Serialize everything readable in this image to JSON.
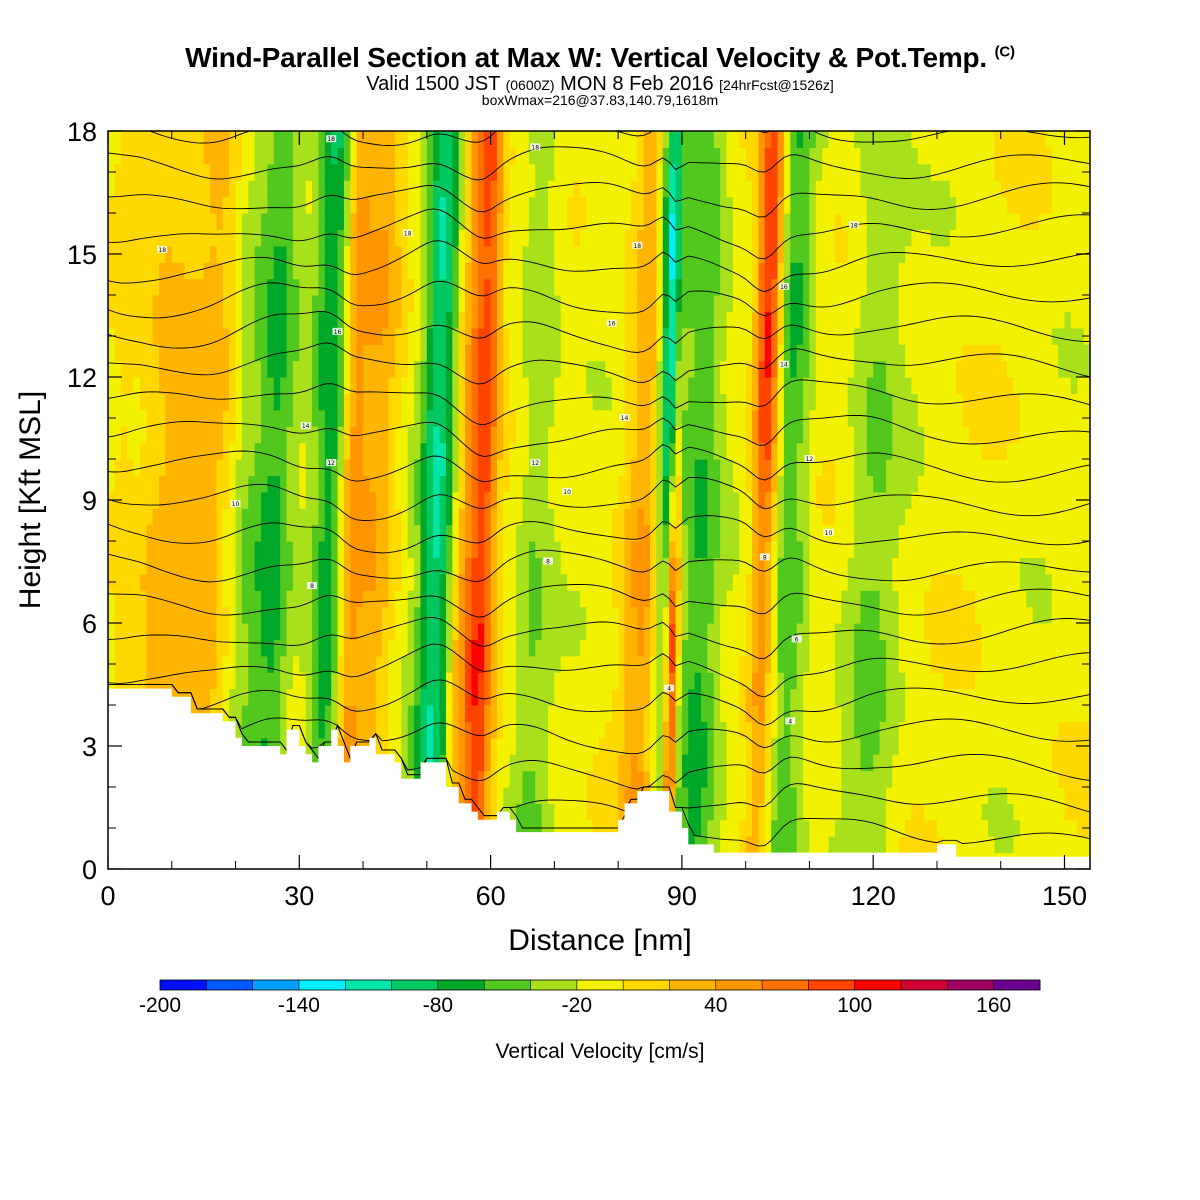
{
  "header": {
    "title": "Wind-Parallel Section at Max W: Vertical Velocity & Pot.Temp.",
    "title_mark": "(C)",
    "subtitle_main_a": "Valid 1500 JST",
    "subtitle_small_a": "(0600Z)",
    "subtitle_main_b": "MON 8 Feb 2016",
    "subtitle_small_b": "[24hrFcst@1526z]",
    "subtitle2": "boxWmax=216@37.83,140.79,1618m"
  },
  "chart_data": {
    "type": "heatmap",
    "xlabel": "Distance [nm]",
    "ylabel": "Height [Kft MSL]",
    "xlim": [
      0,
      154
    ],
    "ylim": [
      0,
      18
    ],
    "x_ticks": [
      0,
      30,
      60,
      90,
      120,
      150
    ],
    "y_ticks": [
      0,
      3,
      6,
      9,
      12,
      15,
      18
    ],
    "colorbar": {
      "label": "Vertical Velocity [cm/s]",
      "range": [
        -200,
        180
      ],
      "tick_values": [
        -200,
        -140,
        -80,
        -20,
        40,
        100,
        160
      ],
      "tick_labels": [
        "-200",
        "-140",
        "-80",
        "-20",
        "40",
        "100",
        "160"
      ],
      "colors": [
        "#0010ff",
        "#0058ff",
        "#00a0ff",
        "#00f0ff",
        "#00e6a8",
        "#00c860",
        "#00a82a",
        "#52c81e",
        "#a8e01c",
        "#f2f200",
        "#ffd800",
        "#ffb400",
        "#ff9600",
        "#ff7000",
        "#ff4400",
        "#ff0000",
        "#d00030",
        "#a00060",
        "#6a0090"
      ]
    },
    "terrain_kft": [
      [
        0,
        4.4
      ],
      [
        5,
        4.4
      ],
      [
        10,
        4.4
      ],
      [
        10,
        4.2
      ],
      [
        13,
        4.2
      ],
      [
        13,
        3.8
      ],
      [
        18,
        3.8
      ],
      [
        18,
        3.6
      ],
      [
        20,
        3.6
      ],
      [
        20,
        3.2
      ],
      [
        21,
        3.2
      ],
      [
        21,
        3.0
      ],
      [
        27,
        3.0
      ],
      [
        27,
        2.8
      ],
      [
        28,
        2.8
      ],
      [
        28,
        3.4
      ],
      [
        30,
        3.4
      ],
      [
        30,
        3.0
      ],
      [
        31,
        3.0
      ],
      [
        31,
        2.8
      ],
      [
        32,
        2.8
      ],
      [
        32,
        2.6
      ],
      [
        33,
        2.6
      ],
      [
        33,
        3.0
      ],
      [
        35,
        3.0
      ],
      [
        35,
        3.4
      ],
      [
        36,
        3.4
      ],
      [
        36,
        3.0
      ],
      [
        37,
        3.0
      ],
      [
        37,
        2.6
      ],
      [
        38,
        2.6
      ],
      [
        38,
        3.0
      ],
      [
        41,
        3.0
      ],
      [
        41,
        3.2
      ],
      [
        42,
        3.2
      ],
      [
        42,
        2.8
      ],
      [
        45,
        2.8
      ],
      [
        45,
        2.6
      ],
      [
        46,
        2.6
      ],
      [
        46,
        2.2
      ],
      [
        49,
        2.2
      ],
      [
        49,
        2.6
      ],
      [
        53,
        2.6
      ],
      [
        53,
        2.0
      ],
      [
        55,
        2.0
      ],
      [
        55,
        1.6
      ],
      [
        57,
        1.6
      ],
      [
        57,
        1.4
      ],
      [
        58,
        1.4
      ],
      [
        58,
        1.2
      ],
      [
        61,
        1.2
      ],
      [
        61,
        1.4
      ],
      [
        63,
        1.4
      ],
      [
        63,
        1.2
      ],
      [
        64,
        1.2
      ],
      [
        64,
        0.9
      ],
      [
        80,
        0.9
      ],
      [
        80,
        1.2
      ],
      [
        81,
        1.2
      ],
      [
        81,
        1.6
      ],
      [
        83,
        1.6
      ],
      [
        83,
        1.9
      ],
      [
        88,
        1.9
      ],
      [
        88,
        1.4
      ],
      [
        90,
        1.4
      ],
      [
        90,
        1.0
      ],
      [
        91,
        1.0
      ],
      [
        91,
        0.6
      ],
      [
        95,
        0.6
      ],
      [
        95,
        0.4
      ],
      [
        130,
        0.4
      ],
      [
        130,
        0.6
      ],
      [
        133,
        0.6
      ],
      [
        133,
        0.3
      ],
      [
        154,
        0.3
      ]
    ],
    "cells": [
      {
        "x": 2,
        "width": 2,
        "w": 15
      },
      {
        "x": 9,
        "width": 5,
        "w": 35
      },
      {
        "x": 17,
        "width": 4,
        "w": 30
      },
      {
        "x": 21,
        "width": 3,
        "w": -30
      },
      {
        "x": 26,
        "width": 3,
        "w": -50
      },
      {
        "x": 35,
        "width": 3,
        "w": -70
      },
      {
        "x": 38,
        "width": 2,
        "w": 60
      },
      {
        "x": 42,
        "width": 3,
        "w": 40
      },
      {
        "x": 52,
        "width": 3,
        "w": -95
      },
      {
        "x": 56,
        "width": 3,
        "w": 60
      },
      {
        "x": 59,
        "width": 2,
        "w": 75
      },
      {
        "x": 67,
        "width": 3,
        "w": -30
      },
      {
        "x": 84,
        "width": 3,
        "w": 45
      },
      {
        "x": 88,
        "width": 2,
        "w": -140
      },
      {
        "x": 89,
        "width": 1,
        "w": 140
      },
      {
        "x": 93,
        "width": 3,
        "w": -50
      },
      {
        "x": 103,
        "width": 2,
        "w": 130
      },
      {
        "x": 107,
        "width": 3,
        "w": -50
      },
      {
        "x": 120,
        "width": 4,
        "w": -30
      }
    ],
    "theta_labels": [
      {
        "x": 8.5,
        "z": 15.1,
        "text": "18"
      },
      {
        "x": 35,
        "z": 17.8,
        "text": "18"
      },
      {
        "x": 47,
        "z": 15.5,
        "text": "18"
      },
      {
        "x": 67,
        "z": 17.6,
        "text": "18"
      },
      {
        "x": 83,
        "z": 15.2,
        "text": "18"
      },
      {
        "x": 117,
        "z": 15.7,
        "text": "18"
      },
      {
        "x": 36,
        "z": 13.1,
        "text": "16"
      },
      {
        "x": 79,
        "z": 13.3,
        "text": "16"
      },
      {
        "x": 106,
        "z": 14.2,
        "text": "16"
      },
      {
        "x": 31,
        "z": 10.8,
        "text": "14"
      },
      {
        "x": 81,
        "z": 11.0,
        "text": "14"
      },
      {
        "x": 106,
        "z": 12.3,
        "text": "14"
      },
      {
        "x": 35,
        "z": 9.9,
        "text": "12"
      },
      {
        "x": 67,
        "z": 9.9,
        "text": "12"
      },
      {
        "x": 110,
        "z": 10.0,
        "text": "12"
      },
      {
        "x": 20,
        "z": 8.9,
        "text": "10"
      },
      {
        "x": 72,
        "z": 9.2,
        "text": "10"
      },
      {
        "x": 113,
        "z": 8.2,
        "text": "10"
      },
      {
        "x": 32,
        "z": 6.9,
        "text": "8"
      },
      {
        "x": 69,
        "z": 7.5,
        "text": "8"
      },
      {
        "x": 103,
        "z": 7.6,
        "text": "8"
      },
      {
        "x": 108,
        "z": 5.6,
        "text": "6"
      },
      {
        "x": 88,
        "z": 4.4,
        "text": "4"
      },
      {
        "x": 107,
        "z": 3.6,
        "text": "4"
      }
    ]
  }
}
